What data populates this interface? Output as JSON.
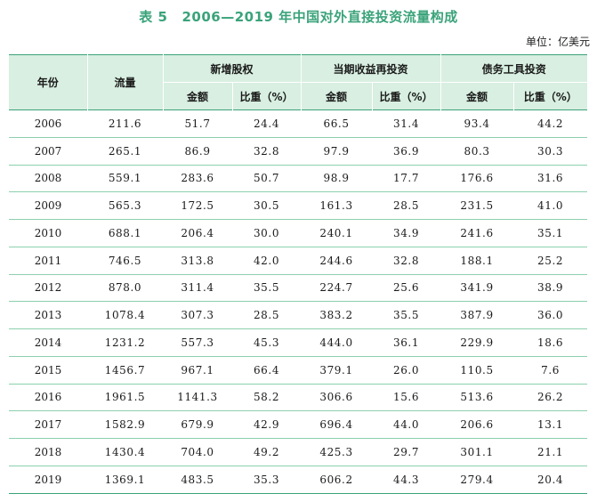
{
  "title": {
    "number": "表 5",
    "text": "2006—2019 年中国对外直接投资流量构成"
  },
  "unit": "单位：亿美元",
  "headers": {
    "year": "年份",
    "flow": "流量",
    "groups": [
      "新增股权",
      "当期收益再投资",
      "债务工具投资"
    ],
    "amount": "金额",
    "ratio": "比重（%）"
  },
  "rows": [
    {
      "year": "2006",
      "flow": "211.6",
      "eq_amt": "51.7",
      "eq_pct": "24.4",
      "re_amt": "66.5",
      "re_pct": "31.4",
      "debt_amt": "93.4",
      "debt_pct": "44.2"
    },
    {
      "year": "2007",
      "flow": "265.1",
      "eq_amt": "86.9",
      "eq_pct": "32.8",
      "re_amt": "97.9",
      "re_pct": "36.9",
      "debt_amt": "80.3",
      "debt_pct": "30.3"
    },
    {
      "year": "2008",
      "flow": "559.1",
      "eq_amt": "283.6",
      "eq_pct": "50.7",
      "re_amt": "98.9",
      "re_pct": "17.7",
      "debt_amt": "176.6",
      "debt_pct": "31.6"
    },
    {
      "year": "2009",
      "flow": "565.3",
      "eq_amt": "172.5",
      "eq_pct": "30.5",
      "re_amt": "161.3",
      "re_pct": "28.5",
      "debt_amt": "231.5",
      "debt_pct": "41.0"
    },
    {
      "year": "2010",
      "flow": "688.1",
      "eq_amt": "206.4",
      "eq_pct": "30.0",
      "re_amt": "240.1",
      "re_pct": "34.9",
      "debt_amt": "241.6",
      "debt_pct": "35.1"
    },
    {
      "year": "2011",
      "flow": "746.5",
      "eq_amt": "313.8",
      "eq_pct": "42.0",
      "re_amt": "244.6",
      "re_pct": "32.8",
      "debt_amt": "188.1",
      "debt_pct": "25.2"
    },
    {
      "year": "2012",
      "flow": "878.0",
      "eq_amt": "311.4",
      "eq_pct": "35.5",
      "re_amt": "224.7",
      "re_pct": "25.6",
      "debt_amt": "341.9",
      "debt_pct": "38.9"
    },
    {
      "year": "2013",
      "flow": "1078.4",
      "eq_amt": "307.3",
      "eq_pct": "28.5",
      "re_amt": "383.2",
      "re_pct": "35.5",
      "debt_amt": "387.9",
      "debt_pct": "36.0"
    },
    {
      "year": "2014",
      "flow": "1231.2",
      "eq_amt": "557.3",
      "eq_pct": "45.3",
      "re_amt": "444.0",
      "re_pct": "36.1",
      "debt_amt": "229.9",
      "debt_pct": "18.6"
    },
    {
      "year": "2015",
      "flow": "1456.7",
      "eq_amt": "967.1",
      "eq_pct": "66.4",
      "re_amt": "379.1",
      "re_pct": "26.0",
      "debt_amt": "110.5",
      "debt_pct": "7.6"
    },
    {
      "year": "2016",
      "flow": "1961.5",
      "eq_amt": "1141.3",
      "eq_pct": "58.2",
      "re_amt": "306.6",
      "re_pct": "15.6",
      "debt_amt": "513.6",
      "debt_pct": "26.2"
    },
    {
      "year": "2017",
      "flow": "1582.9",
      "eq_amt": "679.9",
      "eq_pct": "42.9",
      "re_amt": "696.4",
      "re_pct": "44.0",
      "debt_amt": "206.6",
      "debt_pct": "13.1"
    },
    {
      "year": "2018",
      "flow": "1430.4",
      "eq_amt": "704.0",
      "eq_pct": "49.2",
      "re_amt": "425.3",
      "re_pct": "29.7",
      "debt_amt": "301.1",
      "debt_pct": "21.1"
    },
    {
      "year": "2019",
      "flow": "1369.1",
      "eq_amt": "483.5",
      "eq_pct": "35.3",
      "re_amt": "606.2",
      "re_pct": "44.3",
      "debt_amt": "279.4",
      "debt_pct": "20.4"
    }
  ],
  "colors": {
    "title": "#3aa37a",
    "header_bg": "#d8efe1",
    "rule": "#3aa37a",
    "row_rule": "#8cd0ad"
  }
}
